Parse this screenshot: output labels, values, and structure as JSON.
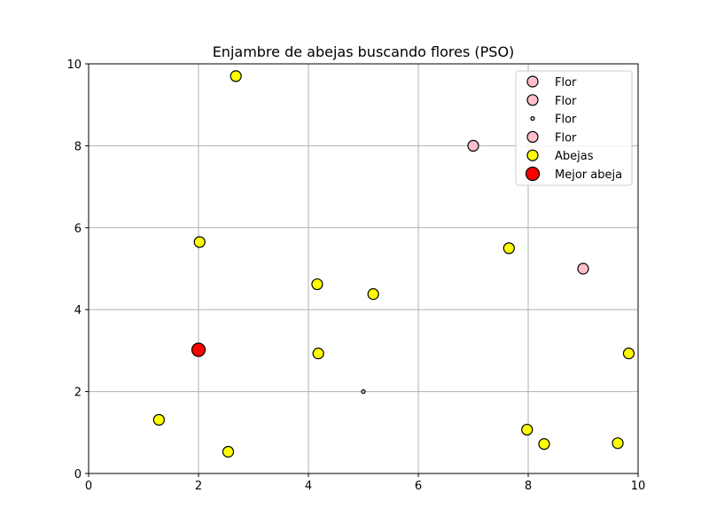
{
  "chart_data": {
    "type": "scatter",
    "title": "Enjambre de abejas buscando flores (PSO)",
    "xlabel": "",
    "ylabel": "",
    "xlim": [
      0,
      10
    ],
    "ylim": [
      0,
      10
    ],
    "xticks": [
      0,
      2,
      4,
      6,
      8,
      10
    ],
    "yticks": [
      0,
      2,
      4,
      6,
      8,
      10
    ],
    "grid": true,
    "legend_position": "top-right",
    "series": [
      {
        "name": "Flor",
        "color": "#ffc0cb",
        "points": [
          {
            "x": 7,
            "y": 8
          }
        ]
      },
      {
        "name": "Flor",
        "color": "#ffc0cb",
        "points": [
          {
            "x": 9,
            "y": 5
          }
        ]
      },
      {
        "name": "Flor",
        "color": "#ffc0cb",
        "points": [
          {
            "x": 5,
            "y": 2
          }
        ]
      },
      {
        "name": "Flor",
        "color": "#ffc0cb",
        "points": [
          {
            "x": 8.9,
            "y": 7.85
          }
        ]
      },
      {
        "name": "Abejas",
        "color": "#ffff00",
        "points": [
          {
            "x": 2.68,
            "y": 9.7
          },
          {
            "x": 2.02,
            "y": 5.65
          },
          {
            "x": 4.16,
            "y": 4.62
          },
          {
            "x": 5.18,
            "y": 4.38
          },
          {
            "x": 7.65,
            "y": 5.5
          },
          {
            "x": 4.18,
            "y": 2.93
          },
          {
            "x": 1.28,
            "y": 1.31
          },
          {
            "x": 2.54,
            "y": 0.53
          },
          {
            "x": 7.98,
            "y": 1.07
          },
          {
            "x": 8.29,
            "y": 0.72
          },
          {
            "x": 9.63,
            "y": 0.74
          },
          {
            "x": 9.83,
            "y": 2.93
          }
        ]
      },
      {
        "name": "Mejor abeja",
        "color": "#ff0000",
        "points": [
          {
            "x": 2.0,
            "y": 3.02
          }
        ]
      }
    ],
    "legend": [
      "Flor",
      "Flor",
      "Flor",
      "Flor",
      "Abejas",
      "Mejor abeja"
    ]
  }
}
